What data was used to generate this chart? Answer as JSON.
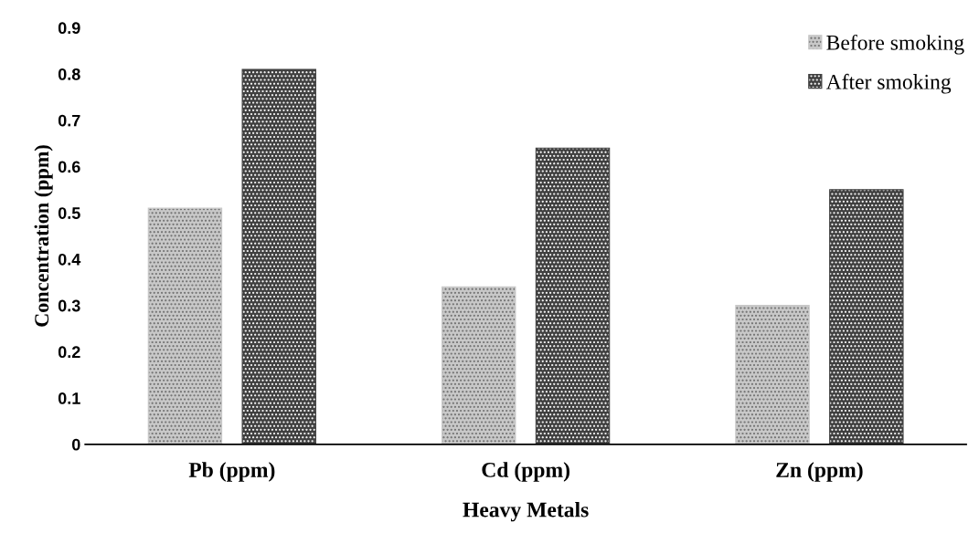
{
  "chart_data": {
    "type": "bar",
    "xlabel": "Heavy Metals",
    "ylabel": "Concentration (ppm)",
    "categories": [
      "Pb (ppm)",
      "Cd (ppm)",
      "Zn (ppm)"
    ],
    "series": [
      {
        "name": "Before smoking",
        "color": "#c8c8c8",
        "values": [
          0.51,
          0.34,
          0.3
        ]
      },
      {
        "name": "After smoking",
        "color": "#404040",
        "values": [
          0.81,
          0.64,
          0.55
        ]
      }
    ],
    "ylim": [
      0,
      0.9
    ],
    "yticks": [
      0,
      0.1,
      0.2,
      0.3,
      0.4,
      0.5,
      0.6,
      0.7,
      0.8,
      0.9
    ],
    "grid": false,
    "legend": "top right"
  }
}
